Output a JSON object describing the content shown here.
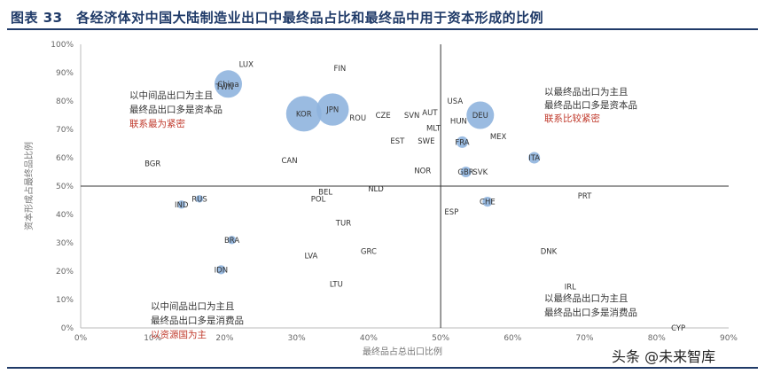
{
  "figure": {
    "title": "图表 33　各经济体对中国大陆制造业出口中最终品占比和最终品中用于资本形成的比例",
    "watermark": "头条 @未来智库"
  },
  "chart_data": {
    "type": "scatter",
    "xlabel": "最终品占总出口比例",
    "ylabel": "资本形成占最终品比例",
    "xlim": [
      0,
      0.9
    ],
    "ylim": [
      0,
      1.0
    ],
    "x_ticks": [
      "0%",
      "10%",
      "20%",
      "30%",
      "40%",
      "50%",
      "60%",
      "70%",
      "80%",
      "90%"
    ],
    "y_ticks": [
      "0%",
      "10%",
      "20%",
      "30%",
      "40%",
      "50%",
      "60%",
      "70%",
      "80%",
      "90%",
      "100%"
    ],
    "dividers": {
      "x": 0.5,
      "y": 0.5
    },
    "bubble_color": "#8fb4de",
    "points": [
      {
        "label": "LUX",
        "x": 0.23,
        "y": 0.93,
        "size": 0
      },
      {
        "label": "FIN",
        "x": 0.36,
        "y": 0.915,
        "size": 0
      },
      {
        "label": "TWN",
        "x": 0.2,
        "y": 0.85,
        "size": 0
      },
      {
        "label": "China",
        "x": 0.205,
        "y": 0.86,
        "size": 3
      },
      {
        "label": "KOR",
        "x": 0.31,
        "y": 0.755,
        "size": 4
      },
      {
        "label": "JPN",
        "x": 0.35,
        "y": 0.77,
        "size": 3.6
      },
      {
        "label": "ROU",
        "x": 0.385,
        "y": 0.74,
        "size": 0
      },
      {
        "label": "CZE",
        "x": 0.42,
        "y": 0.75,
        "size": 0
      },
      {
        "label": "SVN",
        "x": 0.46,
        "y": 0.75,
        "size": 0
      },
      {
        "label": "AUT",
        "x": 0.485,
        "y": 0.76,
        "size": 0
      },
      {
        "label": "MLT",
        "x": 0.49,
        "y": 0.705,
        "size": 0
      },
      {
        "label": "EST",
        "x": 0.44,
        "y": 0.66,
        "size": 0
      },
      {
        "label": "SWE",
        "x": 0.48,
        "y": 0.66,
        "size": 0
      },
      {
        "label": "USA",
        "x": 0.52,
        "y": 0.8,
        "size": 0
      },
      {
        "label": "DEU",
        "x": 0.555,
        "y": 0.75,
        "size": 3
      },
      {
        "label": "HUN",
        "x": 0.525,
        "y": 0.73,
        "size": 0
      },
      {
        "label": "FRA",
        "x": 0.53,
        "y": 0.655,
        "size": 1
      },
      {
        "label": "MEX",
        "x": 0.58,
        "y": 0.675,
        "size": 0
      },
      {
        "label": "ITA",
        "x": 0.63,
        "y": 0.6,
        "size": 1
      },
      {
        "label": "BGR",
        "x": 0.1,
        "y": 0.58,
        "size": 0
      },
      {
        "label": "CAN",
        "x": 0.29,
        "y": 0.59,
        "size": 0
      },
      {
        "label": "NOR",
        "x": 0.475,
        "y": 0.555,
        "size": 0
      },
      {
        "label": "GBR",
        "x": 0.535,
        "y": 0.55,
        "size": 0.9
      },
      {
        "label": "SVK",
        "x": 0.555,
        "y": 0.55,
        "size": 0
      },
      {
        "label": "BEL",
        "x": 0.34,
        "y": 0.48,
        "size": 0
      },
      {
        "label": "NLD",
        "x": 0.41,
        "y": 0.49,
        "size": 0
      },
      {
        "label": "POL",
        "x": 0.33,
        "y": 0.455,
        "size": 0
      },
      {
        "label": "RUS",
        "x": 0.165,
        "y": 0.455,
        "size": 0.5
      },
      {
        "label": "IND",
        "x": 0.14,
        "y": 0.435,
        "size": 0.6
      },
      {
        "label": "CHE",
        "x": 0.565,
        "y": 0.445,
        "size": 0.8
      },
      {
        "label": "ESP",
        "x": 0.515,
        "y": 0.41,
        "size": 0
      },
      {
        "label": "PRT",
        "x": 0.7,
        "y": 0.465,
        "size": 0
      },
      {
        "label": "TUR",
        "x": 0.365,
        "y": 0.37,
        "size": 0
      },
      {
        "label": "BRA",
        "x": 0.21,
        "y": 0.31,
        "size": 0.6
      },
      {
        "label": "GRC",
        "x": 0.4,
        "y": 0.27,
        "size": 0
      },
      {
        "label": "LVA",
        "x": 0.32,
        "y": 0.255,
        "size": 0
      },
      {
        "label": "DNK",
        "x": 0.65,
        "y": 0.27,
        "size": 0
      },
      {
        "label": "IDN",
        "x": 0.195,
        "y": 0.205,
        "size": 0.7
      },
      {
        "label": "LTU",
        "x": 0.355,
        "y": 0.155,
        "size": 0
      },
      {
        "label": "IRL",
        "x": 0.68,
        "y": 0.145,
        "size": 0
      },
      {
        "label": "CYP",
        "x": 0.83,
        "y": 0.0,
        "size": 0
      }
    ],
    "annotations": {
      "top_left": [
        "以中间品出口为主且",
        "最终品出口多是资本品",
        "联系最为紧密"
      ],
      "top_right": [
        "以最终品出口为主且",
        "最终品出口多是资本品",
        "联系比较紧密"
      ],
      "bottom_left": [
        "以中间品出口为主且",
        "最终品出口多是消费品",
        "以资源国为主"
      ],
      "bottom_right": [
        "以最终品出口为主且",
        "最终品出口多是消费品"
      ]
    }
  }
}
